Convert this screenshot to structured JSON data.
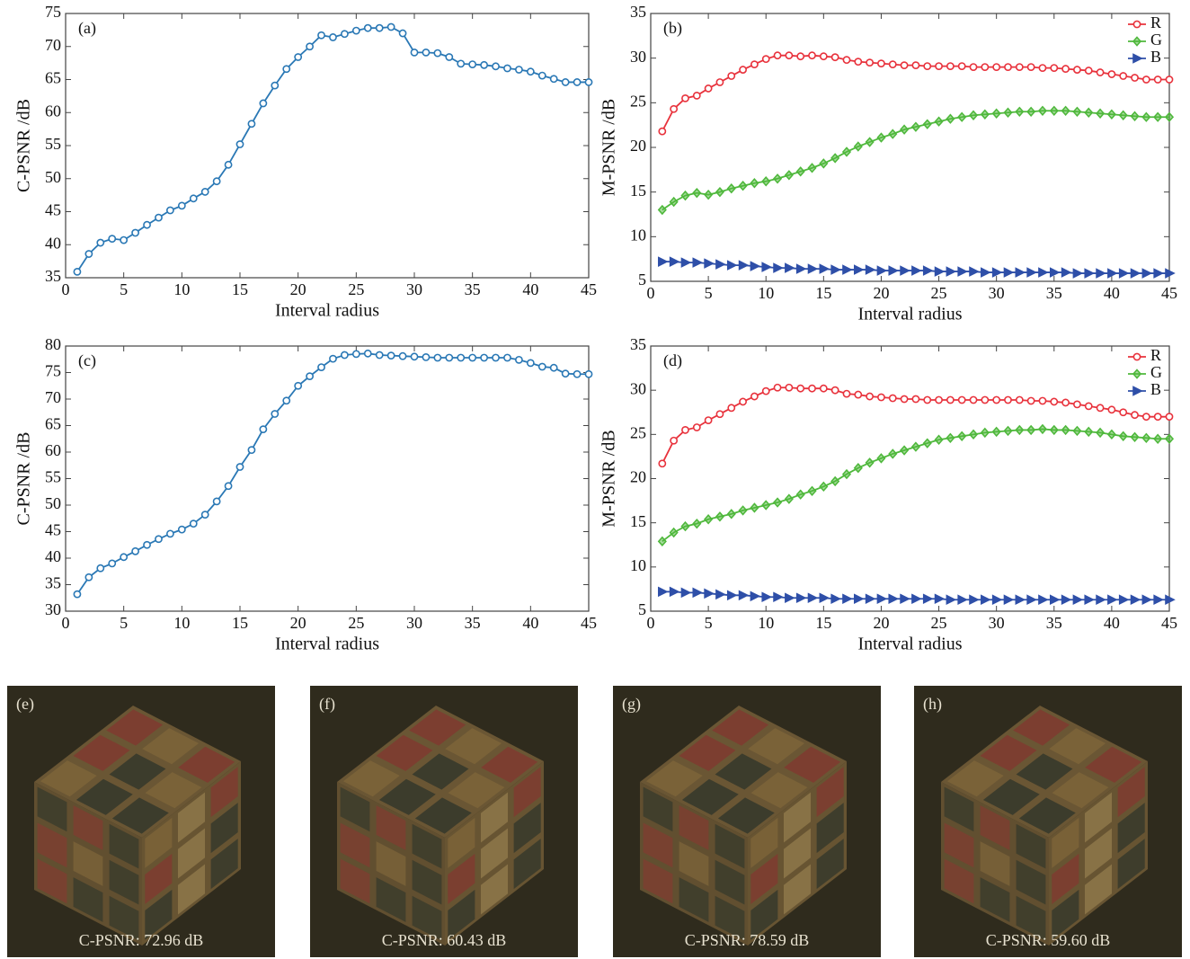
{
  "chart_data": [
    {
      "type": "line",
      "label": "(a)",
      "xlabel": "Interval radius",
      "ylabel": "C-PSNR /dB",
      "color": "#2a78b5",
      "marker": "circle",
      "x": [
        1,
        2,
        3,
        4,
        5,
        6,
        7,
        8,
        9,
        10,
        11,
        12,
        13,
        14,
        15,
        16,
        17,
        18,
        19,
        20,
        21,
        22,
        23,
        24,
        25,
        26,
        27,
        28,
        29,
        30,
        31,
        32,
        33,
        34,
        35,
        36,
        37,
        38,
        39,
        40,
        41,
        42,
        43,
        44,
        45
      ],
      "values": [
        35.9,
        38.6,
        40.3,
        40.9,
        40.7,
        41.8,
        43.0,
        44.1,
        45.2,
        45.9,
        47.0,
        48.0,
        49.6,
        52.1,
        55.2,
        58.3,
        61.4,
        64.1,
        66.6,
        68.4,
        70.0,
        71.7,
        71.4,
        71.9,
        72.4,
        72.8,
        72.8,
        72.96,
        72.0,
        69.1,
        69.1,
        69.0,
        68.4,
        67.4,
        67.3,
        67.2,
        67.0,
        66.7,
        66.5,
        66.2,
        65.6,
        65.1,
        64.6,
        64.6,
        64.6
      ],
      "xlim": [
        0,
        45
      ],
      "xticks": [
        0,
        5,
        10,
        15,
        20,
        25,
        30,
        35,
        40,
        45
      ],
      "ylim": [
        35,
        75
      ],
      "yticks": [
        35,
        40,
        45,
        50,
        55,
        60,
        65,
        70,
        75
      ]
    },
    {
      "type": "line",
      "label": "(b)",
      "xlabel": "Interval radius",
      "ylabel": "M-PSNR /dB",
      "legend": "upper right",
      "x": [
        1,
        2,
        3,
        4,
        5,
        6,
        7,
        8,
        9,
        10,
        11,
        12,
        13,
        14,
        15,
        16,
        17,
        18,
        19,
        20,
        21,
        22,
        23,
        24,
        25,
        26,
        27,
        28,
        29,
        30,
        31,
        32,
        33,
        34,
        35,
        36,
        37,
        38,
        39,
        40,
        41,
        42,
        43,
        44,
        45
      ],
      "series": [
        {
          "name": "R",
          "color": "#e8323c",
          "marker": "circle",
          "values": [
            21.8,
            24.3,
            25.5,
            25.8,
            26.6,
            27.3,
            28.0,
            28.7,
            29.3,
            29.9,
            30.3,
            30.3,
            30.2,
            30.3,
            30.2,
            30.1,
            29.8,
            29.6,
            29.5,
            29.4,
            29.3,
            29.2,
            29.2,
            29.1,
            29.1,
            29.1,
            29.1,
            29.0,
            29.0,
            29.0,
            29.0,
            29.0,
            29.0,
            28.9,
            28.9,
            28.8,
            28.7,
            28.6,
            28.4,
            28.2,
            28.0,
            27.8,
            27.6,
            27.6,
            27.6
          ]
        },
        {
          "name": "G",
          "color": "#4fb83c",
          "marker": "diamond",
          "values": [
            13.0,
            13.9,
            14.6,
            14.9,
            14.7,
            15.0,
            15.4,
            15.7,
            16.0,
            16.2,
            16.5,
            16.9,
            17.3,
            17.7,
            18.2,
            18.8,
            19.5,
            20.1,
            20.6,
            21.1,
            21.5,
            22.0,
            22.3,
            22.6,
            22.9,
            23.2,
            23.4,
            23.6,
            23.7,
            23.8,
            23.9,
            24.0,
            24.0,
            24.1,
            24.1,
            24.1,
            24.0,
            23.9,
            23.8,
            23.7,
            23.6,
            23.5,
            23.4,
            23.4,
            23.4
          ]
        },
        {
          "name": "B",
          "color": "#2e4fa8",
          "marker": "triangle-right",
          "values": [
            7.2,
            7.2,
            7.1,
            7.1,
            7.0,
            6.9,
            6.8,
            6.8,
            6.7,
            6.6,
            6.5,
            6.5,
            6.4,
            6.4,
            6.4,
            6.3,
            6.3,
            6.3,
            6.3,
            6.2,
            6.2,
            6.2,
            6.2,
            6.2,
            6.1,
            6.1,
            6.1,
            6.1,
            6.0,
            6.0,
            6.0,
            6.0,
            6.0,
            6.0,
            6.0,
            6.0,
            5.9,
            5.9,
            5.9,
            5.9,
            5.9,
            5.9,
            5.9,
            5.9,
            5.9
          ]
        }
      ],
      "xlim": [
        0,
        45
      ],
      "xticks": [
        0,
        5,
        10,
        15,
        20,
        25,
        30,
        35,
        40,
        45
      ],
      "ylim": [
        5,
        35
      ],
      "yticks": [
        5,
        10,
        15,
        20,
        25,
        30,
        35
      ]
    },
    {
      "type": "line",
      "label": "(c)",
      "xlabel": "Interval radius",
      "ylabel": "C-PSNR /dB",
      "color": "#2a78b5",
      "marker": "circle",
      "x": [
        1,
        2,
        3,
        4,
        5,
        6,
        7,
        8,
        9,
        10,
        11,
        12,
        13,
        14,
        15,
        16,
        17,
        18,
        19,
        20,
        21,
        22,
        23,
        24,
        25,
        26,
        27,
        28,
        29,
        30,
        31,
        32,
        33,
        34,
        35,
        36,
        37,
        38,
        39,
        40,
        41,
        42,
        43,
        44,
        45
      ],
      "values": [
        33.2,
        36.4,
        38.1,
        39.0,
        40.2,
        41.3,
        42.5,
        43.6,
        44.6,
        45.4,
        46.5,
        48.2,
        50.7,
        53.6,
        57.2,
        60.4,
        64.3,
        67.2,
        69.7,
        72.5,
        74.3,
        76.0,
        77.6,
        78.3,
        78.5,
        78.59,
        78.3,
        78.2,
        78.1,
        78.0,
        77.9,
        77.8,
        77.8,
        77.8,
        77.8,
        77.8,
        77.8,
        77.8,
        77.4,
        76.8,
        76.1,
        75.9,
        74.8,
        74.7,
        74.7
      ],
      "xlim": [
        0,
        45
      ],
      "xticks": [
        0,
        5,
        10,
        15,
        20,
        25,
        30,
        35,
        40,
        45
      ],
      "ylim": [
        30,
        80
      ],
      "yticks": [
        30,
        35,
        40,
        45,
        50,
        55,
        60,
        65,
        70,
        75,
        80
      ]
    },
    {
      "type": "line",
      "label": "(d)",
      "xlabel": "Interval radius",
      "ylabel": "M-PSNR /dB",
      "legend": "upper right",
      "x": [
        1,
        2,
        3,
        4,
        5,
        6,
        7,
        8,
        9,
        10,
        11,
        12,
        13,
        14,
        15,
        16,
        17,
        18,
        19,
        20,
        21,
        22,
        23,
        24,
        25,
        26,
        27,
        28,
        29,
        30,
        31,
        32,
        33,
        34,
        35,
        36,
        37,
        38,
        39,
        40,
        41,
        42,
        43,
        44,
        45
      ],
      "series": [
        {
          "name": "R",
          "color": "#e8323c",
          "marker": "circle",
          "values": [
            21.7,
            24.3,
            25.5,
            25.8,
            26.6,
            27.3,
            28.0,
            28.7,
            29.3,
            29.9,
            30.3,
            30.3,
            30.2,
            30.2,
            30.2,
            30.0,
            29.6,
            29.5,
            29.3,
            29.2,
            29.1,
            29.0,
            29.0,
            28.9,
            28.9,
            28.9,
            28.9,
            28.9,
            28.9,
            28.9,
            28.9,
            28.9,
            28.8,
            28.8,
            28.7,
            28.6,
            28.4,
            28.2,
            28.0,
            27.8,
            27.5,
            27.2,
            27.0,
            27.0,
            27.0
          ]
        },
        {
          "name": "G",
          "color": "#4fb83c",
          "marker": "diamond",
          "values": [
            12.9,
            13.9,
            14.6,
            14.9,
            15.4,
            15.7,
            16.0,
            16.4,
            16.7,
            17.0,
            17.3,
            17.7,
            18.2,
            18.6,
            19.1,
            19.7,
            20.5,
            21.2,
            21.8,
            22.3,
            22.8,
            23.2,
            23.6,
            24.0,
            24.4,
            24.6,
            24.8,
            25.0,
            25.2,
            25.3,
            25.4,
            25.5,
            25.5,
            25.6,
            25.5,
            25.5,
            25.4,
            25.3,
            25.2,
            25.0,
            24.8,
            24.7,
            24.6,
            24.5,
            24.5
          ]
        },
        {
          "name": "B",
          "color": "#2e4fa8",
          "marker": "triangle-right",
          "values": [
            7.2,
            7.2,
            7.1,
            7.1,
            7.0,
            6.9,
            6.8,
            6.8,
            6.7,
            6.6,
            6.6,
            6.5,
            6.5,
            6.5,
            6.5,
            6.4,
            6.4,
            6.4,
            6.4,
            6.4,
            6.4,
            6.4,
            6.4,
            6.4,
            6.4,
            6.3,
            6.3,
            6.3,
            6.3,
            6.3,
            6.3,
            6.3,
            6.3,
            6.3,
            6.3,
            6.3,
            6.3,
            6.3,
            6.3,
            6.3,
            6.3,
            6.3,
            6.3,
            6.3,
            6.3
          ]
        }
      ],
      "xlim": [
        0,
        45
      ],
      "xticks": [
        0,
        5,
        10,
        15,
        20,
        25,
        30,
        35,
        40,
        45
      ],
      "ylim": [
        5,
        35
      ],
      "yticks": [
        5,
        10,
        15,
        20,
        25,
        30,
        35
      ]
    }
  ],
  "images": [
    {
      "label": "(e)",
      "caption": "C-PSNR: 72.96 dB"
    },
    {
      "label": "(f)",
      "caption": "C-PSNR: 60.43 dB"
    },
    {
      "label": "(g)",
      "caption": "C-PSNR: 78.59 dB"
    },
    {
      "label": "(h)",
      "caption": "C-PSNR: 59.60 dB"
    }
  ]
}
